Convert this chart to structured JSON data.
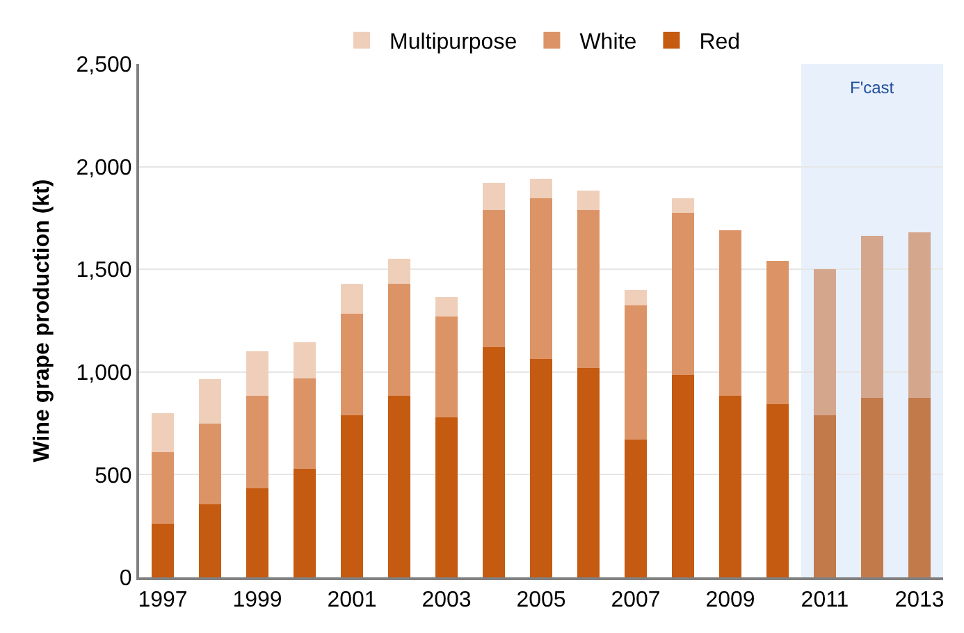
{
  "chart_data": {
    "type": "bar",
    "stacked": true,
    "ylabel": "Wine grape production (kt)",
    "categories": [
      "1997",
      null,
      "1999",
      null,
      "2001",
      null,
      "2003",
      null,
      "2005",
      null,
      "2007",
      null,
      "2009",
      null,
      "2011",
      null,
      "2013"
    ],
    "series": [
      {
        "name": "Red",
        "color": "#c55a11",
        "colors": [
          "#c55a11",
          "#c55a11",
          "#c55a11",
          "#c55a11",
          "#c55a11",
          "#c55a11",
          "#c55a11",
          "#c55a11",
          "#c55a11",
          "#c55a11",
          "#c55a11",
          "#c55a11",
          "#c55a11",
          "#c55a11",
          "#c27a4b",
          "#c27a4b",
          "#c27a4b"
        ],
        "values": [
          260,
          355,
          435,
          530,
          790,
          885,
          780,
          1120,
          1065,
          1020,
          670,
          985,
          885,
          845,
          790,
          875,
          875
        ]
      },
      {
        "name": "White",
        "color": "#dc9467",
        "colors": [
          "#dc9467",
          "#dc9467",
          "#dc9467",
          "#dc9467",
          "#dc9467",
          "#dc9467",
          "#dc9467",
          "#dc9467",
          "#dc9467",
          "#dc9467",
          "#dc9467",
          "#dc9467",
          "#dc9467",
          "#dc9467",
          "#d4a68c",
          "#d4a68c",
          "#d4a68c"
        ],
        "values": [
          350,
          395,
          450,
          440,
          495,
          545,
          490,
          670,
          780,
          770,
          655,
          790,
          805,
          695,
          710,
          790,
          805
        ]
      },
      {
        "name": "Multipurpose",
        "color": "#efcfb9",
        "values": [
          190,
          215,
          215,
          175,
          145,
          120,
          95,
          130,
          95,
          95,
          75,
          70,
          null,
          null,
          null,
          null,
          null
        ]
      }
    ],
    "ylim": [
      0,
      2500
    ],
    "yticks": [
      0,
      {
        "value": 500,
        "label": "500"
      },
      {
        "value": 1000,
        "label": "1,000"
      },
      {
        "value": 1500,
        "label": "1,500"
      },
      {
        "value": 2000,
        "label": "2,000"
      },
      {
        "value": 2500,
        "label": "2,500"
      }
    ],
    "grid": "y",
    "legend": "top",
    "bands": [
      {
        "axis": "x",
        "from": "2011",
        "to": "2013",
        "label": "F'cast",
        "color": "#e8f0fc"
      }
    ]
  }
}
